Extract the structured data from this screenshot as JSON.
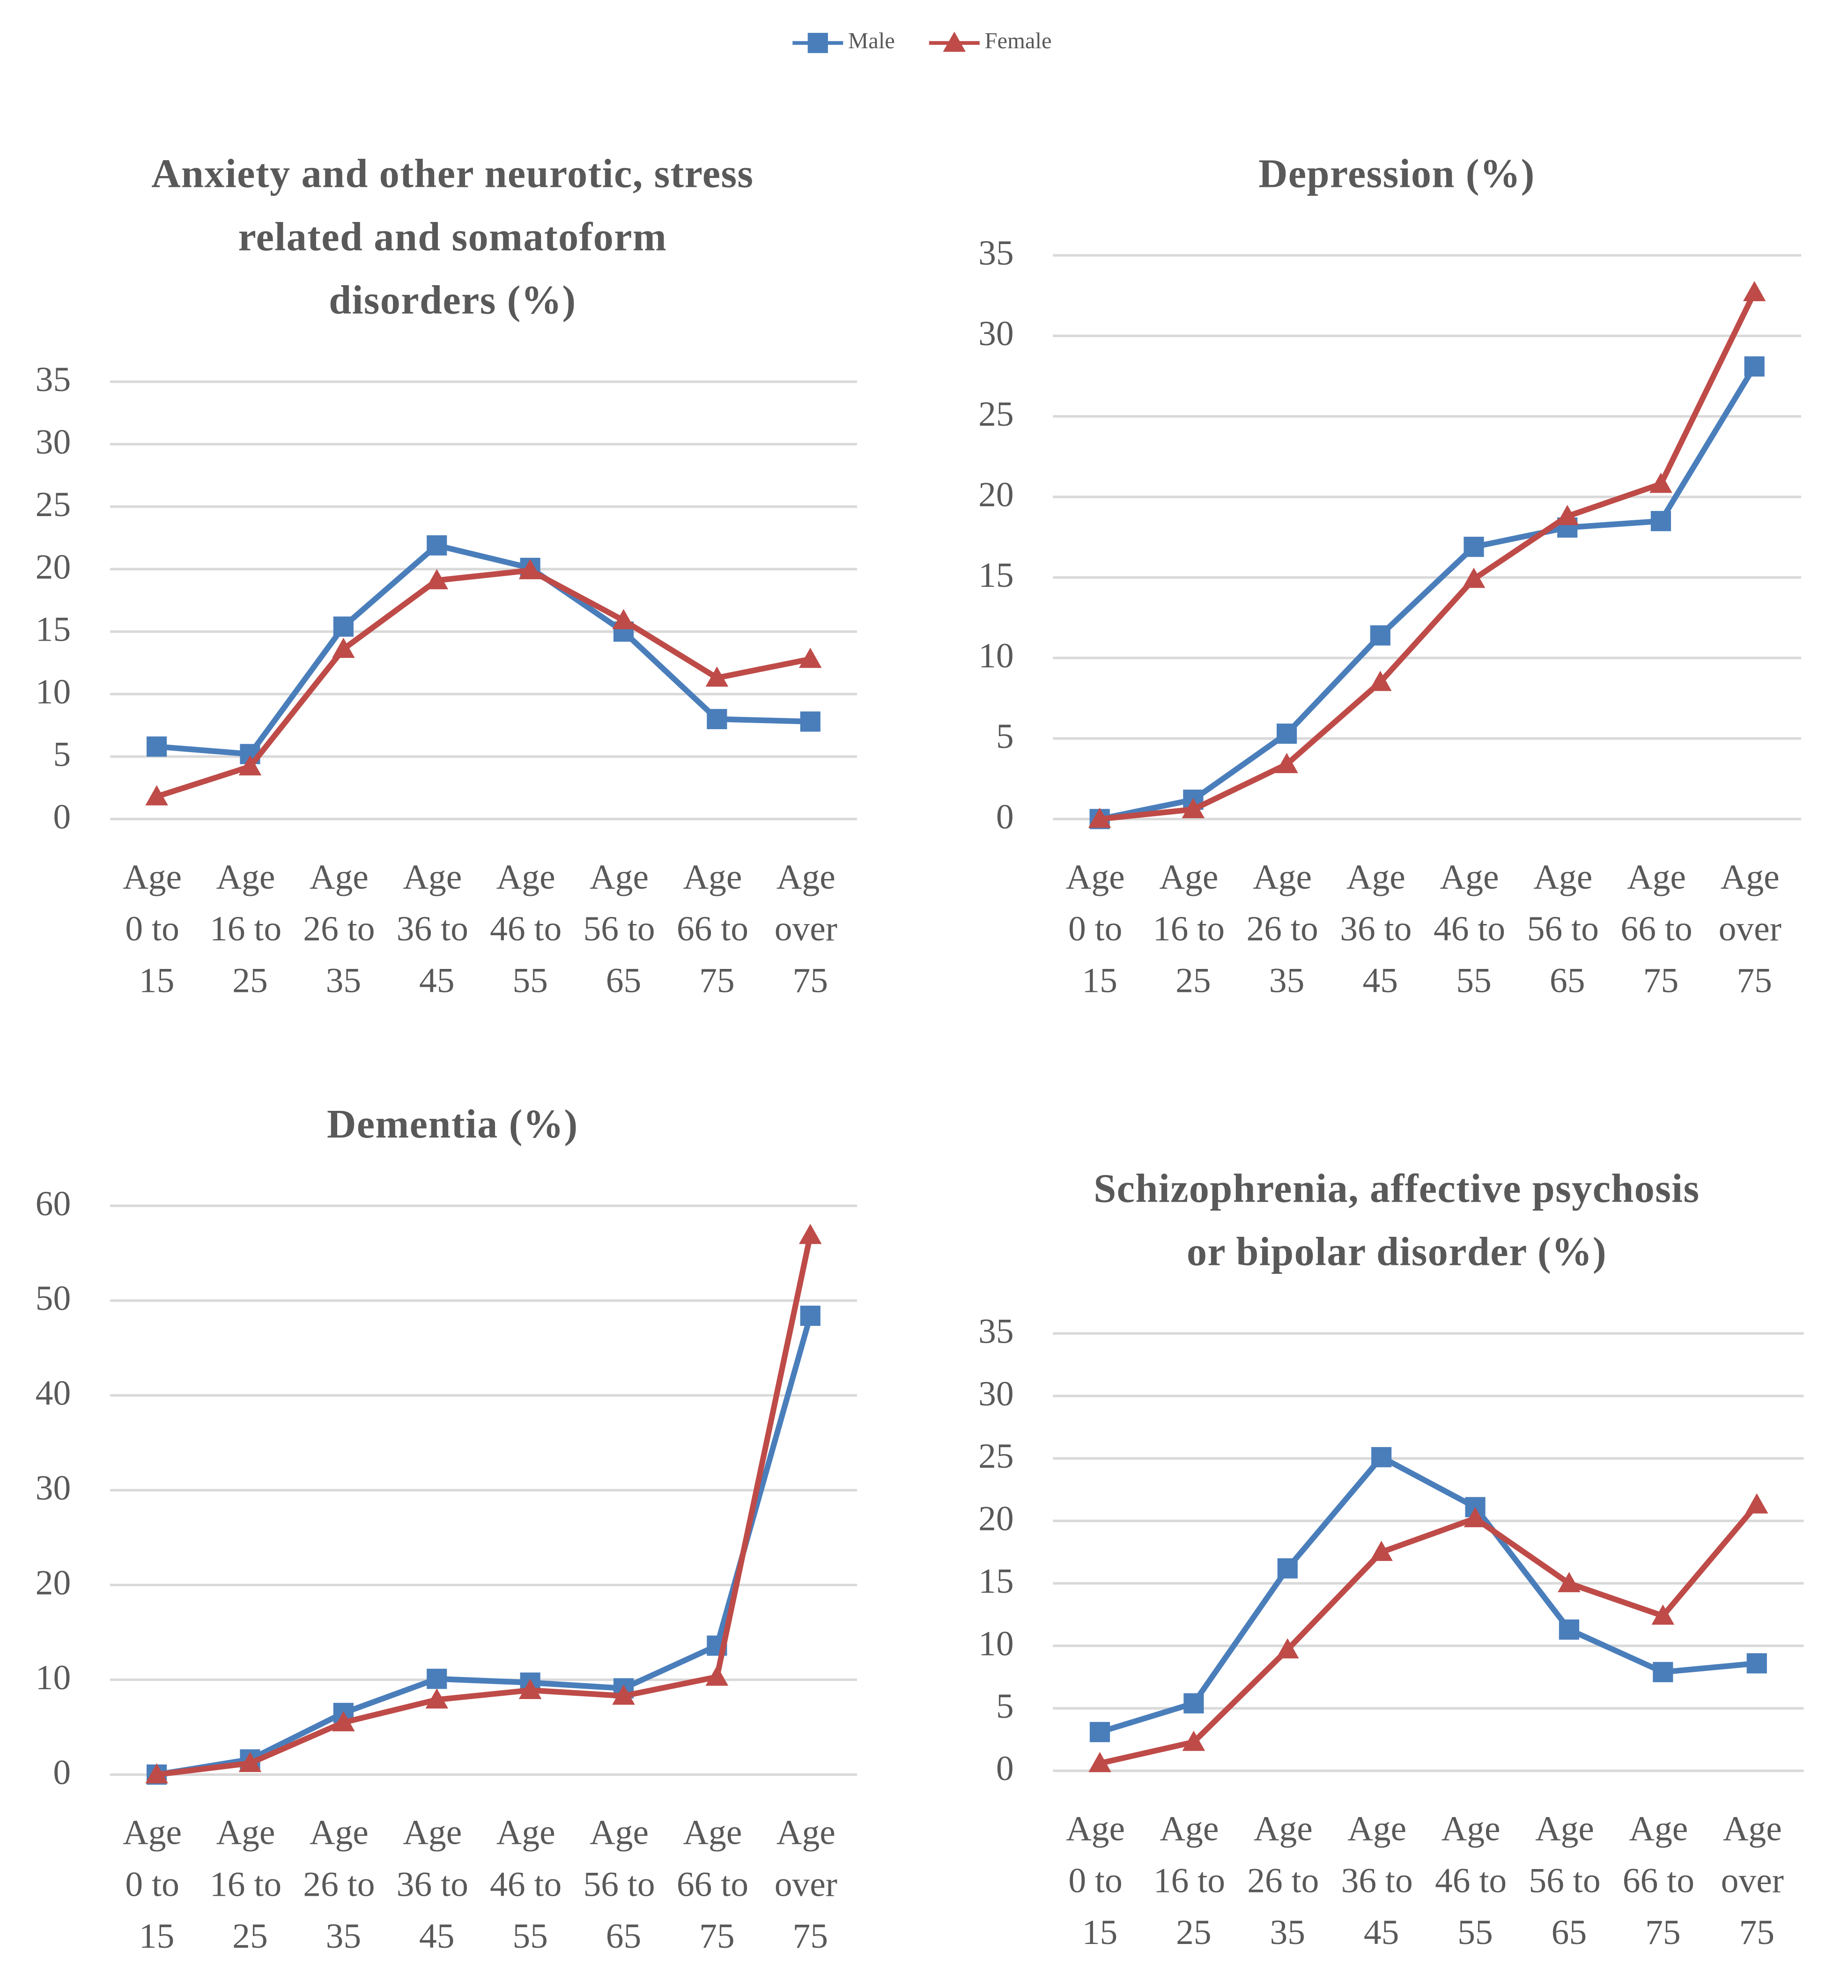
{
  "chart_data": [
    {
      "type": "line",
      "title": "Anxiety and other neurotic, stress related and somatoform disorders (%)",
      "categories": [
        "Age 0 to 15",
        "Age 16 to 25",
        "Age 26 to 35",
        "Age 36 to 45",
        "Age 46 to 55",
        "Age 56 to 65",
        "Age 66 to 75",
        "Age over 75"
      ],
      "series": [
        {
          "name": "Male",
          "color": "#4a7ebb",
          "marker": "square",
          "values": [
            5.8,
            5.2,
            15.4,
            21.9,
            20.1,
            15.0,
            8.0,
            7.8
          ]
        },
        {
          "name": "Female",
          "color": "#be4b48",
          "marker": "triangle",
          "values": [
            1.8,
            4.2,
            13.6,
            19.1,
            19.9,
            15.9,
            11.3,
            12.8
          ]
        }
      ],
      "ylim": [
        0,
        35
      ],
      "yticks": [
        0,
        5,
        10,
        15,
        20,
        25,
        30,
        35
      ],
      "grid": true
    },
    {
      "type": "line",
      "title": "Depression (%)",
      "categories": [
        "Age 0 to 15",
        "Age 16 to 25",
        "Age 26 to 35",
        "Age 36 to 45",
        "Age 46 to 55",
        "Age 56 to 65",
        "Age 66 to 75",
        "Age over 75"
      ],
      "series": [
        {
          "name": "Male",
          "color": "#4a7ebb",
          "marker": "square",
          "values": [
            0,
            1.2,
            5.3,
            11.4,
            16.9,
            18.1,
            18.5,
            28.1
          ]
        },
        {
          "name": "Female",
          "color": "#be4b48",
          "marker": "triangle",
          "values": [
            0,
            0.6,
            3.4,
            8.5,
            14.9,
            18.8,
            20.8,
            32.7
          ]
        }
      ],
      "ylim": [
        0,
        35
      ],
      "yticks": [
        0,
        5,
        10,
        15,
        20,
        25,
        30,
        35
      ],
      "grid": true
    },
    {
      "type": "line",
      "title": "Dementia (%)",
      "categories": [
        "Age 0 to 15",
        "Age 16 to 25",
        "Age 26 to 35",
        "Age 36 to 45",
        "Age 46 to 55",
        "Age 56 to 65",
        "Age 66 to 75",
        "Age over 75"
      ],
      "series": [
        {
          "name": "Male",
          "color": "#4a7ebb",
          "marker": "square",
          "values": [
            0,
            1.6,
            6.5,
            10.1,
            9.7,
            9.1,
            13.6,
            48.4
          ]
        },
        {
          "name": "Female",
          "color": "#be4b48",
          "marker": "triangle",
          "values": [
            0,
            1.2,
            5.5,
            7.9,
            8.9,
            8.3,
            10.3,
            56.9
          ]
        }
      ],
      "ylim": [
        0,
        60
      ],
      "yticks": [
        0,
        10,
        20,
        30,
        40,
        50,
        60
      ],
      "grid": true
    },
    {
      "type": "line",
      "title": "Schizophrenia, affective psychosis or bipolar disorder (%)",
      "categories": [
        "Age 0 to 15",
        "Age 16 to 25",
        "Age 26 to 35",
        "Age 36 to 45",
        "Age 46 to 55",
        "Age 56 to 65",
        "Age 66 to 75",
        "Age over 75"
      ],
      "series": [
        {
          "name": "Male",
          "color": "#4a7ebb",
          "marker": "square",
          "values": [
            3.1,
            5.4,
            16.2,
            25.1,
            21.1,
            11.3,
            7.9,
            8.6
          ]
        },
        {
          "name": "Female",
          "color": "#be4b48",
          "marker": "triangle",
          "values": [
            0.6,
            2.3,
            9.7,
            17.5,
            20.2,
            15.0,
            12.4,
            21.3
          ]
        }
      ],
      "ylim": [
        0,
        35
      ],
      "yticks": [
        0,
        5,
        10,
        15,
        20,
        25,
        30,
        35
      ],
      "grid": true
    }
  ]
}
